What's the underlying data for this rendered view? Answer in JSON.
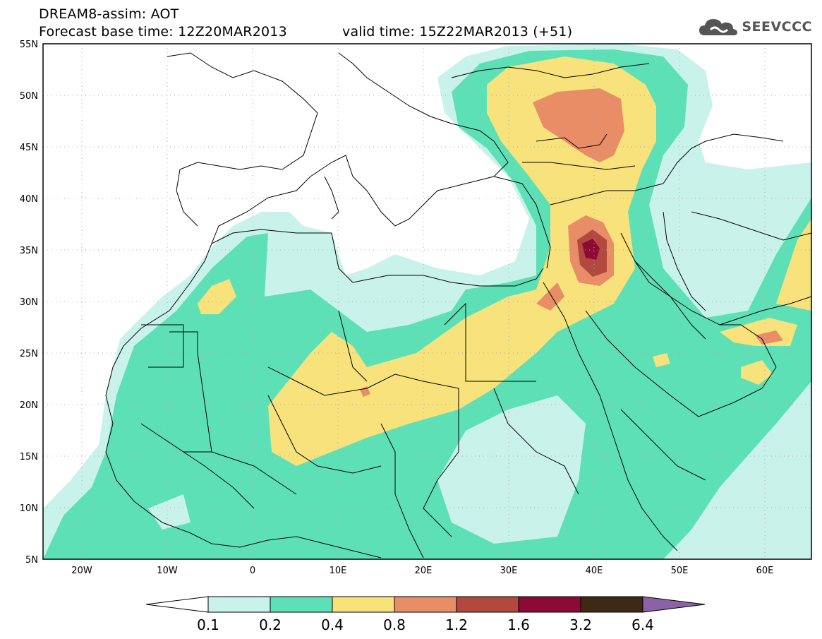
{
  "header": {
    "line1": "DREAM8-assim: AOT",
    "line2": "Forecast base time: 12Z20MAR2013",
    "line3": "valid time: 15Z22MAR2013 (+51)"
  },
  "brand": {
    "name": "SEEVCCC",
    "logo_icon": "cloud-logo-icon"
  },
  "map": {
    "lat_labels": [
      "55N",
      "50N",
      "45N",
      "40N",
      "35N",
      "30N",
      "25N",
      "20N",
      "15N",
      "10N",
      "5N"
    ],
    "lon_labels": [
      "20W",
      "10W",
      "0",
      "10E",
      "20E",
      "30E",
      "40E",
      "50E",
      "60E"
    ],
    "lon_range": [
      -25,
      65
    ],
    "lat_range": [
      5,
      55
    ],
    "grid": "dotted"
  },
  "colorbar": {
    "levels": [
      "0.1",
      "0.2",
      "0.4",
      "0.8",
      "1.2",
      "1.6",
      "3.2",
      "6.4"
    ],
    "colors": [
      "#ffffff",
      "#c9f3ea",
      "#5ee0b7",
      "#f7e27c",
      "#e98d66",
      "#b2483e",
      "#8c0a33",
      "#3e2a14",
      "#8b63a5"
    ]
  }
}
